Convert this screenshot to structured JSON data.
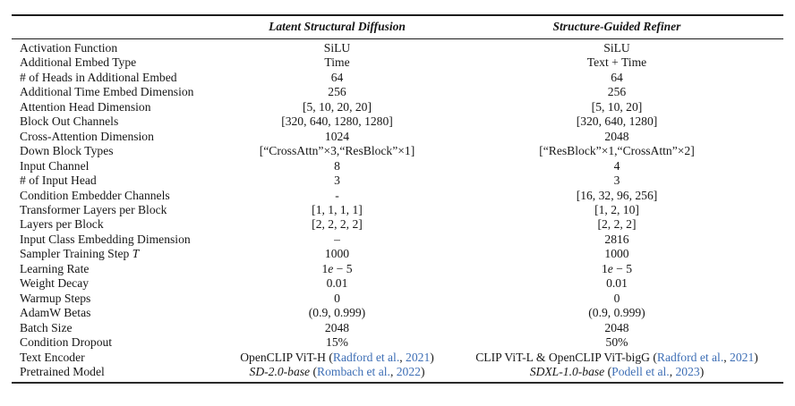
{
  "colors": {
    "citation_blue": "#3d6eb5",
    "text": "#161616",
    "rule": "#1c1c1c"
  },
  "table": {
    "columns": [
      "",
      "Latent Structural Diffusion",
      "Structure-Guided Refiner"
    ],
    "rows": [
      {
        "label": "Activation Function",
        "c1": "SiLU",
        "c2": "SiLU"
      },
      {
        "label": "Additional Embed Type",
        "c1": "Time",
        "c2": "Text + Time"
      },
      {
        "label": "# of Heads in Additional Embed",
        "c1": "64",
        "c2": "64"
      },
      {
        "label": "Additional Time Embed Dimension",
        "c1": "256",
        "c2": "256"
      },
      {
        "label": "Attention Head Dimension",
        "c1": "[5, 10, 20, 20]",
        "c2": "[5, 10, 20]"
      },
      {
        "label": "Block Out Channels",
        "c1": "[320, 640, 1280, 1280]",
        "c2": "[320, 640, 1280]"
      },
      {
        "label": "Cross-Attention Dimension",
        "c1": "1024",
        "c2": "2048"
      },
      {
        "label": "Down Block Types",
        "c1": "[“CrossAttn”×3,“ResBlock”×1]",
        "c2": "[“ResBlock”×1,“CrossAttn”×2]"
      },
      {
        "label": "Input Channel",
        "c1": "8",
        "c2": "4"
      },
      {
        "label": "# of Input Head",
        "c1": "3",
        "c2": "3"
      },
      {
        "label": "Condition Embedder Channels",
        "c1": "-",
        "c2": "[16, 32, 96, 256]"
      },
      {
        "label": "Transformer Layers per Block",
        "c1": "[1, 1, 1, 1]",
        "c2": "[1, 2, 10]"
      },
      {
        "label": "Layers per Block",
        "c1": "[2, 2, 2, 2]",
        "c2": "[2, 2, 2]"
      },
      {
        "label": "Input Class Embedding Dimension",
        "c1": "–",
        "c2": "2816"
      },
      {
        "label": [
          {
            "t": "Sampler Training Step "
          },
          {
            "t": "T",
            "i": true
          }
        ],
        "c1": "1000",
        "c2": "1000"
      },
      {
        "label": "Learning Rate",
        "c1": [
          {
            "t": "1"
          },
          {
            "t": "e",
            "i": true
          },
          {
            "t": " − 5"
          }
        ],
        "c2": [
          {
            "t": "1"
          },
          {
            "t": "e",
            "i": true
          },
          {
            "t": " − 5"
          }
        ]
      },
      {
        "label": "Weight Decay",
        "c1": "0.01",
        "c2": "0.01"
      },
      {
        "label": "Warmup Steps",
        "c1": "0",
        "c2": "0"
      },
      {
        "label": "AdamW Betas",
        "c1": "(0.9, 0.999)",
        "c2": "(0.9, 0.999)"
      },
      {
        "label": "Batch Size",
        "c1": "2048",
        "c2": "2048"
      },
      {
        "label": "Condition Dropout",
        "c1": "15%",
        "c2": "50%"
      },
      {
        "label": "Text Encoder",
        "c1": [
          {
            "t": "OpenCLIP ViT-H ("
          },
          {
            "t": "Radford et al.",
            "c": true
          },
          {
            "t": ", "
          },
          {
            "t": "2021",
            "c": true
          },
          {
            "t": ")"
          }
        ],
        "c2": [
          {
            "t": "CLIP ViT-L & OpenCLIP ViT-bigG ("
          },
          {
            "t": "Radford et al.",
            "c": true
          },
          {
            "t": ", "
          },
          {
            "t": "2021",
            "c": true
          },
          {
            "t": ")"
          }
        ]
      },
      {
        "label": "Pretrained Model",
        "c1": [
          {
            "t": "SD-2.0-base ",
            "i": true
          },
          {
            "t": "("
          },
          {
            "t": "Rombach et al.",
            "c": true
          },
          {
            "t": ", "
          },
          {
            "t": "2022",
            "c": true
          },
          {
            "t": ")"
          }
        ],
        "c2": [
          {
            "t": "SDXL-1.0-base ",
            "i": true
          },
          {
            "t": "("
          },
          {
            "t": "Podell et al.",
            "c": true
          },
          {
            "t": ", "
          },
          {
            "t": "2023",
            "c": true
          },
          {
            "t": ")"
          }
        ]
      }
    ]
  }
}
